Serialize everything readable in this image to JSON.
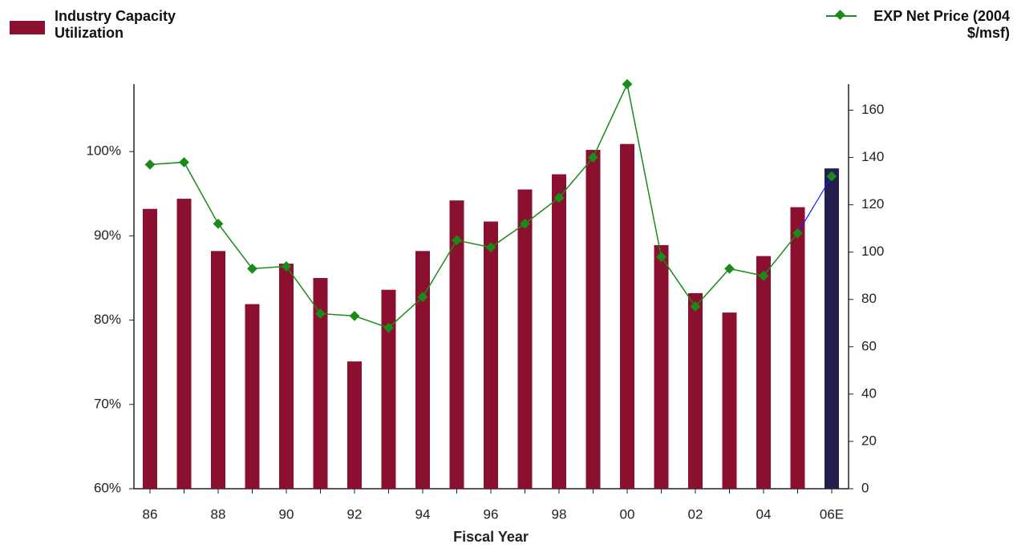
{
  "chart_data": {
    "type": "bar-line",
    "x_label": "Fiscal Year",
    "categories": [
      "86",
      null,
      "88",
      null,
      "90",
      null,
      "92",
      null,
      "94",
      null,
      "96",
      null,
      "98",
      null,
      "00",
      null,
      "02",
      null,
      "04",
      null,
      "06E"
    ],
    "series": [
      {
        "name": "Industry Capacity Utilization",
        "type": "bar",
        "axis": "y",
        "color": "#8b1030",
        "projection_color": "#221f4c",
        "values": [
          93.2,
          94.4,
          88.2,
          81.9,
          86.7,
          85.0,
          75.1,
          83.6,
          88.2,
          94.2,
          91.7,
          95.5,
          97.3,
          100.2,
          100.9,
          88.9,
          83.2,
          80.9,
          87.6,
          93.4,
          98.0
        ]
      },
      {
        "name": "EXP Net Price (2004 $/msf)",
        "type": "line",
        "axis": "y2",
        "color": "#1a8a1a",
        "projection_color": "#1a1aff",
        "values": [
          137,
          138,
          112,
          93,
          94,
          74,
          73,
          68,
          81,
          105,
          102,
          112,
          123,
          140,
          171,
          98,
          77,
          93,
          90,
          108,
          132
        ]
      }
    ],
    "ylim": [
      60,
      108
    ],
    "yticks": [
      {
        "value": 60,
        "label": "60%"
      },
      {
        "value": 70,
        "label": "70%"
      },
      {
        "value": 80,
        "label": "80%"
      },
      {
        "value": 90,
        "label": "90%"
      },
      {
        "value": 100,
        "label": "100%"
      }
    ],
    "y2lim": [
      0,
      171
    ],
    "y2ticks": [
      0,
      20,
      40,
      60,
      80,
      100,
      120,
      140,
      160
    ]
  }
}
